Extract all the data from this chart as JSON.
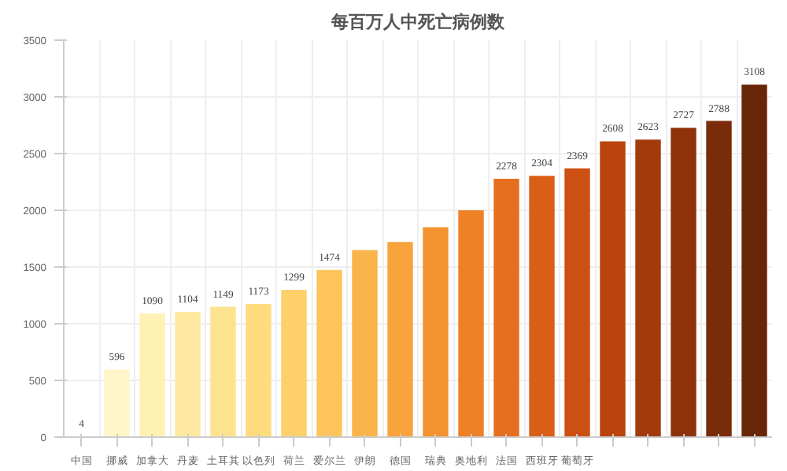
{
  "chart_data": {
    "type": "bar",
    "title": "每百万人中死亡病例数",
    "categories": [
      "中国",
      "挪威",
      "加拿大",
      "丹麦",
      "土耳其",
      "以色列",
      "荷兰",
      "爱尔兰",
      "伊朗",
      "德国",
      "瑞典",
      "奥地利",
      "法国",
      "西班牙",
      "葡萄牙",
      null,
      null,
      null,
      null,
      null
    ],
    "values": [
      4,
      596,
      1090,
      1104,
      1149,
      1173,
      1299,
      1474,
      1650,
      1720,
      1850,
      2000,
      2278,
      2304,
      2369,
      2608,
      2623,
      2727,
      2788,
      3108
    ],
    "value_labels": [
      "4",
      "596",
      "1090",
      "1104",
      "1149",
      "1173",
      "1299",
      "1474",
      null,
      null,
      null,
      null,
      "2278",
      "2304",
      "2369",
      "2608",
      "2623",
      "2727",
      "2788",
      "3108"
    ],
    "colors": [
      "#fffbe0",
      "#fff5c8",
      "#fff0b4",
      "#ffe9a0",
      "#fee38e",
      "#fedb7c",
      "#fdd06a",
      "#fcc45a",
      "#fbb44a",
      "#f9a33c",
      "#f49230",
      "#ee8026",
      "#e56f1e",
      "#d95f17",
      "#cb5012",
      "#b9440e",
      "#a33a0c",
      "#8e320b",
      "#7a2c0a",
      "#682609"
    ],
    "ylim": [
      0,
      3500
    ],
    "yticks": [
      0,
      500,
      1000,
      1500,
      2000,
      2500,
      3000,
      3500
    ],
    "grid": true
  }
}
